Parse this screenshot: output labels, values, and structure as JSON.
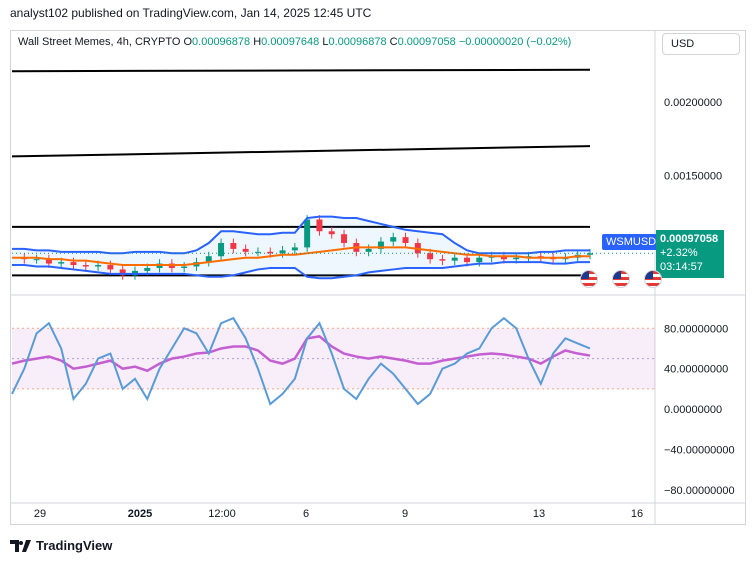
{
  "header": {
    "publisher": "analyst102 published on TradingView.com, Jan 14, 2025 12:45 UTC"
  },
  "legend": {
    "symbol": "Wall Street Memes, 4h, CRYPTO",
    "o_label": "O",
    "o_val": "0.00096878",
    "h_label": "H",
    "h_val": "0.00097648",
    "l_label": "L",
    "l_val": "0.00096878",
    "c_label": "C",
    "c_val": "0.00097058",
    "change": "−0.00000020 (−0.02%)"
  },
  "currency": "USD",
  "badge": "WSMUSD",
  "price_box": {
    "price": "0.00097058",
    "pct": "+2.32%",
    "timer": "03:14:57"
  },
  "footer": {
    "brand": "TradingView"
  },
  "colors": {
    "up": "#089981",
    "down": "#f23645",
    "band": "#2962ff",
    "basis": "#ff6d00",
    "stoch": "#5b9bd5",
    "stoch_ma": "#c55fd1"
  },
  "chart_data": [
    {
      "type": "line",
      "title": "Wall Street Memes, 4h, CRYPTO",
      "x_ticks": [
        "29",
        "2025",
        "12:00",
        "6",
        "9",
        "13",
        "16"
      ],
      "y_ticks": [
        "0.00200000",
        "0.00150000"
      ],
      "ylim": [
        0.00072,
        0.0023
      ],
      "indicators": [
        "Bollinger Bands"
      ],
      "trendlines": [
        {
          "name": "upper channel",
          "y": [
            0.00221,
            0.00222
          ]
        },
        {
          "name": "mid channel",
          "y": [
            0.00163,
            0.0017
          ]
        },
        {
          "name": "resistance",
          "y": [
            0.00115,
            0.00115
          ]
        },
        {
          "name": "support",
          "y": [
            0.00082,
            0.00082
          ]
        }
      ],
      "series": [
        {
          "values": [
            0.00094,
            0.00093,
            0.00093,
            0.0009,
            0.00091,
            0.00089,
            0.00088,
            0.00089,
            0.00086,
            0.00082,
            0.00085,
            0.00087,
            0.0009,
            0.00087,
            0.00088,
            0.00091,
            0.00095,
            0.00104,
            0.001,
            0.00098,
            0.00098,
            0.00097,
            0.00099,
            0.00101,
            0.0012,
            0.00112,
            0.0011,
            0.00104,
            0.00098,
            0.001,
            0.00105,
            0.00108,
            0.00104,
            0.00097,
            0.00093,
            0.00092,
            0.00094,
            0.00091,
            0.00094,
            0.00095,
            0.00093,
            0.00094,
            0.00095,
            0.00094,
            0.00093,
            0.00094,
            0.00096,
            0.00097
          ]
        },
        {
          "name": "BB upper",
          "values": [
            0.001,
            0.001,
            0.00099,
            0.00099,
            0.00098,
            0.00098,
            0.00098,
            0.00098,
            0.00097,
            0.00097,
            0.00098,
            0.00098,
            0.00098,
            0.00097,
            0.00097,
            0.00099,
            0.00104,
            0.00112,
            0.00112,
            0.00111,
            0.0011,
            0.0011,
            0.00111,
            0.00111,
            0.00121,
            0.00122,
            0.00122,
            0.00121,
            0.00121,
            0.00119,
            0.00117,
            0.00115,
            0.00113,
            0.00112,
            0.00111,
            0.0011,
            0.00104,
            0.00099,
            0.00097,
            0.00097,
            0.00097,
            0.00097,
            0.00097,
            0.00098,
            0.00098,
            0.00099,
            0.00099,
            0.00099
          ]
        },
        {
          "name": "BB basis",
          "values": [
            0.00094,
            0.00094,
            0.00094,
            0.00093,
            0.00093,
            0.00092,
            0.00092,
            0.00091,
            0.0009,
            0.00089,
            0.00089,
            0.00089,
            0.00089,
            0.00089,
            0.00089,
            0.0009,
            0.00091,
            0.00092,
            0.00093,
            0.00094,
            0.00094,
            0.00095,
            0.00096,
            0.00096,
            0.00097,
            0.00098,
            0.00099,
            0.001,
            0.00101,
            0.00101,
            0.00101,
            0.00101,
            0.00101,
            0.001,
            0.00099,
            0.00098,
            0.00097,
            0.00096,
            0.00096,
            0.00095,
            0.00095,
            0.00095,
            0.00094,
            0.00094,
            0.00094,
            0.00094,
            0.00095,
            0.00095
          ]
        },
        {
          "name": "BB lower",
          "values": [
            0.00089,
            0.00089,
            0.00088,
            0.00088,
            0.00087,
            0.00086,
            0.00085,
            0.00084,
            0.00083,
            0.00083,
            0.00083,
            0.00083,
            0.00083,
            0.00083,
            0.00083,
            0.00082,
            0.00081,
            0.00081,
            0.00082,
            0.00084,
            0.00086,
            0.00087,
            0.00087,
            0.00087,
            0.00081,
            0.0008,
            0.0008,
            0.00081,
            0.00082,
            0.00084,
            0.00085,
            0.00086,
            0.00087,
            0.00087,
            0.00087,
            0.00087,
            0.00088,
            0.00089,
            0.0009,
            0.0009,
            0.00091,
            0.00091,
            0.00091,
            0.00091,
            0.0009,
            0.0009,
            0.00091,
            0.00091
          ]
        }
      ]
    },
    {
      "type": "line",
      "title": "",
      "y_ticks": [
        "80.00000000",
        "40.00000000",
        "0.00000000",
        "−40.00000000",
        "−80.00000000"
      ],
      "ylim": [
        -90,
        108
      ],
      "grid": false,
      "bands": {
        "upper": 80,
        "middle": 50,
        "lower": 20
      },
      "series": [
        {
          "name": "%K",
          "values": [
            15,
            40,
            75,
            85,
            60,
            10,
            25,
            50,
            55,
            20,
            30,
            10,
            40,
            60,
            80,
            75,
            55,
            85,
            90,
            70,
            40,
            5,
            15,
            30,
            70,
            85,
            55,
            20,
            10,
            30,
            45,
            35,
            20,
            5,
            15,
            40,
            45,
            55,
            60,
            80,
            90,
            80,
            50,
            25,
            55,
            70,
            65,
            60
          ]
        },
        {
          "name": "%D",
          "values": [
            45,
            48,
            50,
            52,
            48,
            40,
            42,
            45,
            48,
            40,
            42,
            38,
            45,
            50,
            52,
            55,
            56,
            60,
            62,
            62,
            58,
            48,
            45,
            50,
            70,
            72,
            62,
            55,
            52,
            50,
            52,
            50,
            48,
            45,
            45,
            48,
            50,
            52,
            54,
            55,
            54,
            52,
            50,
            45,
            52,
            58,
            55,
            53
          ]
        }
      ]
    }
  ]
}
